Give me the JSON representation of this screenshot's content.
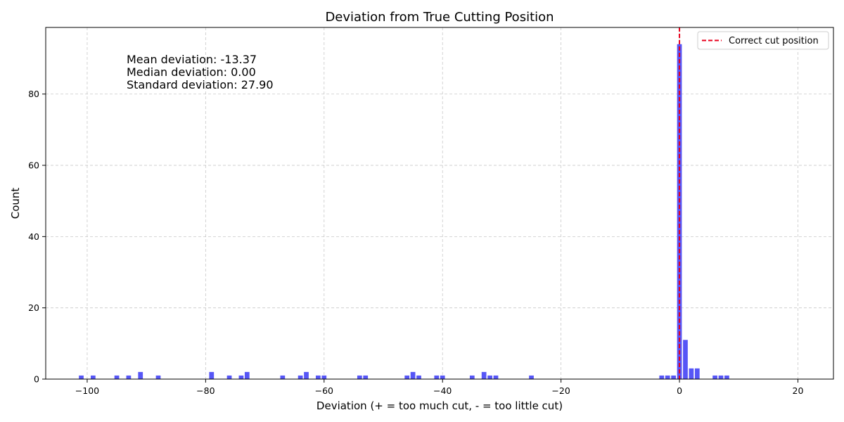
{
  "chart_data": {
    "type": "bar",
    "title": "Deviation from True Cutting Position",
    "xlabel": "Deviation (+ = too much cut, - = too little cut)",
    "ylabel": "Count",
    "xlim": [
      -107,
      26
    ],
    "ylim": [
      0,
      98.7
    ],
    "xticks": [
      -100,
      -80,
      -60,
      -40,
      -20,
      0,
      20
    ],
    "yticks": [
      0,
      20,
      40,
      60,
      80
    ],
    "grid": true,
    "bar_color": "#4d4df5",
    "reference_line": {
      "x": 0,
      "label": "Correct cut position",
      "color": "#e8001c",
      "style": "dashed"
    },
    "legend_position": "top-right",
    "annotations": [
      "Mean deviation: -13.37",
      "Median deviation: 0.00",
      "Standard deviation: 27.90"
    ],
    "x": [
      -101,
      -99,
      -95,
      -93,
      -91,
      -88,
      -79,
      -76,
      -74,
      -73,
      -67,
      -64,
      -63,
      -61,
      -60,
      -54,
      -53,
      -46,
      -45,
      -44,
      -41,
      -40,
      -35,
      -33,
      -32,
      -31,
      -25,
      -3,
      -2,
      -1,
      0,
      1,
      2,
      3,
      6,
      7,
      8
    ],
    "values": [
      1,
      1,
      1,
      1,
      2,
      1,
      2,
      1,
      1,
      2,
      1,
      1,
      2,
      1,
      1,
      1,
      1,
      1,
      2,
      1,
      1,
      1,
      1,
      2,
      1,
      1,
      1,
      1,
      1,
      1,
      94,
      11,
      3,
      3,
      1,
      1,
      1
    ]
  }
}
